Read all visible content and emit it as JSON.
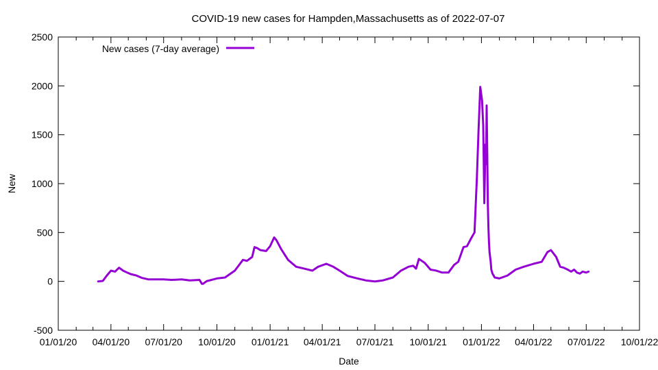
{
  "chart_data": {
    "type": "line",
    "title": "COVID-19 new cases for Hampden,Massachusetts as of 2022-07-07",
    "xlabel": "Date",
    "ylabel": "New",
    "xlim": [
      "2020-01-01",
      "2022-10-01"
    ],
    "ylim": [
      -500,
      2500
    ],
    "x_ticks": [
      "2020-01-01",
      "2020-04-01",
      "2020-07-01",
      "2020-10-01",
      "2021-01-01",
      "2021-04-01",
      "2021-07-01",
      "2021-10-01",
      "2022-01-01",
      "2022-04-01",
      "2022-07-01",
      "2022-10-01"
    ],
    "x_tick_labels": [
      "01/01/20",
      "04/01/20",
      "07/01/20",
      "10/01/20",
      "01/01/21",
      "04/01/21",
      "07/01/21",
      "10/01/21",
      "01/01/22",
      "04/01/22",
      "07/01/22",
      "10/01/22"
    ],
    "y_ticks": [
      -500,
      0,
      500,
      1000,
      1500,
      2000,
      2500
    ],
    "y_tick_labels": [
      "-500",
      "0",
      "500",
      "1000",
      "1500",
      "2000",
      "2500"
    ],
    "grid": false,
    "legend": {
      "position": "top-left"
    },
    "series": [
      {
        "name": "New cases (7-day average)",
        "color": "#9400d3",
        "x": [
          "2020-03-10",
          "2020-03-18",
          "2020-03-25",
          "2020-04-01",
          "2020-04-08",
          "2020-04-15",
          "2020-04-22",
          "2020-04-29",
          "2020-05-05",
          "2020-05-15",
          "2020-05-25",
          "2020-06-05",
          "2020-06-15",
          "2020-07-01",
          "2020-07-15",
          "2020-08-01",
          "2020-08-15",
          "2020-09-01",
          "2020-09-05",
          "2020-09-07",
          "2020-09-14",
          "2020-09-15",
          "2020-10-01",
          "2020-10-15",
          "2020-11-01",
          "2020-11-15",
          "2020-11-22",
          "2020-12-01",
          "2020-12-05",
          "2020-12-10",
          "2020-12-15",
          "2020-12-25",
          "2021-01-01",
          "2021-01-08",
          "2021-01-12",
          "2021-01-20",
          "2021-02-01",
          "2021-02-15",
          "2021-03-01",
          "2021-03-15",
          "2021-03-25",
          "2021-04-08",
          "2021-04-20",
          "2021-05-01",
          "2021-05-15",
          "2021-06-01",
          "2021-06-15",
          "2021-07-01",
          "2021-07-15",
          "2021-08-01",
          "2021-08-15",
          "2021-08-28",
          "2021-09-05",
          "2021-09-10",
          "2021-09-15",
          "2021-09-25",
          "2021-10-05",
          "2021-10-15",
          "2021-10-25",
          "2021-11-05",
          "2021-11-15",
          "2021-11-22",
          "2021-12-01",
          "2021-12-07",
          "2021-12-15",
          "2021-12-20",
          "2021-12-24",
          "2021-12-27",
          "2021-12-30",
          "2022-01-02",
          "2022-01-04",
          "2022-01-06",
          "2022-01-08",
          "2022-01-09",
          "2022-01-10",
          "2022-01-11",
          "2022-01-12",
          "2022-01-13",
          "2022-01-14",
          "2022-01-15",
          "2022-01-17",
          "2022-01-18",
          "2022-01-20",
          "2022-01-24",
          "2022-02-01",
          "2022-02-15",
          "2022-03-01",
          "2022-03-15",
          "2022-04-01",
          "2022-04-15",
          "2022-04-25",
          "2022-05-01",
          "2022-05-10",
          "2022-05-17",
          "2022-05-23",
          "2022-05-30",
          "2022-06-05",
          "2022-06-10",
          "2022-06-15",
          "2022-06-20",
          "2022-06-25",
          "2022-07-01",
          "2022-07-05"
        ],
        "y": [
          0,
          5,
          60,
          110,
          100,
          140,
          110,
          90,
          75,
          60,
          35,
          20,
          20,
          20,
          15,
          20,
          10,
          15,
          -25,
          -25,
          5,
          5,
          30,
          40,
          110,
          220,
          210,
          250,
          350,
          340,
          320,
          310,
          360,
          450,
          420,
          330,
          220,
          150,
          130,
          110,
          150,
          180,
          150,
          110,
          55,
          30,
          10,
          0,
          10,
          40,
          110,
          150,
          160,
          130,
          230,
          190,
          120,
          110,
          90,
          90,
          170,
          200,
          350,
          360,
          450,
          500,
          1050,
          1550,
          1990,
          1850,
          1600,
          800,
          1400,
          1200,
          1800,
          1300,
          800,
          550,
          400,
          300,
          200,
          120,
          80,
          40,
          30,
          60,
          120,
          150,
          180,
          200,
          300,
          320,
          250,
          150,
          140,
          120,
          100,
          120,
          90,
          80,
          100,
          90,
          100
        ]
      }
    ]
  }
}
